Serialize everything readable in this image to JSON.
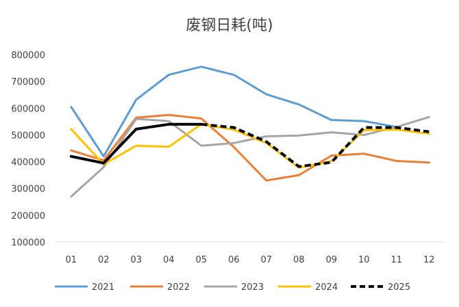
{
  "chart_data": {
    "type": "line",
    "title": "废钢日耗(吨)",
    "xlabel": "",
    "ylabel": "",
    "categories": [
      "01",
      "02",
      "03",
      "04",
      "05",
      "06",
      "07",
      "08",
      "09",
      "10",
      "11",
      "12"
    ],
    "ylim": [
      100000,
      800000
    ],
    "yticks": [
      100000,
      200000,
      300000,
      400000,
      500000,
      600000,
      700000,
      800000
    ],
    "ytick_labels": [
      "100000",
      "200000",
      "300000",
      "400000",
      "500000",
      "600000",
      "700000",
      "800000"
    ],
    "grid": false,
    "legend_position": "bottom",
    "series": [
      {
        "name": "2021",
        "color": "#5B9BD5",
        "dash": false,
        "values": [
          605000,
          420000,
          632000,
          725000,
          755000,
          725000,
          652000,
          614000,
          556000,
          552000,
          530000,
          null
        ]
      },
      {
        "name": "2022",
        "color": "#ED7D31",
        "dash": false,
        "values": [
          442000,
          405000,
          565000,
          575000,
          562000,
          455000,
          330000,
          350000,
          423000,
          430000,
          403000,
          397000
        ]
      },
      {
        "name": "2023",
        "color": "#A5A5A5",
        "dash": false,
        "values": [
          270000,
          380000,
          560000,
          552000,
          460000,
          470000,
          495000,
          498000,
          510000,
          500000,
          530000,
          567000
        ]
      },
      {
        "name": "2024",
        "color": "#FFC000",
        "dash": false,
        "values": [
          522000,
          390000,
          460000,
          456000,
          540000,
          520000,
          470000,
          378000,
          402000,
          518000,
          520000,
          505000
        ]
      },
      {
        "name": "2025",
        "color": "#000000",
        "dash_from_index": 4,
        "values": [
          420000,
          395000,
          522000,
          540000,
          540000,
          528000,
          475000,
          382000,
          398000,
          528000,
          528000,
          512000
        ]
      }
    ]
  }
}
